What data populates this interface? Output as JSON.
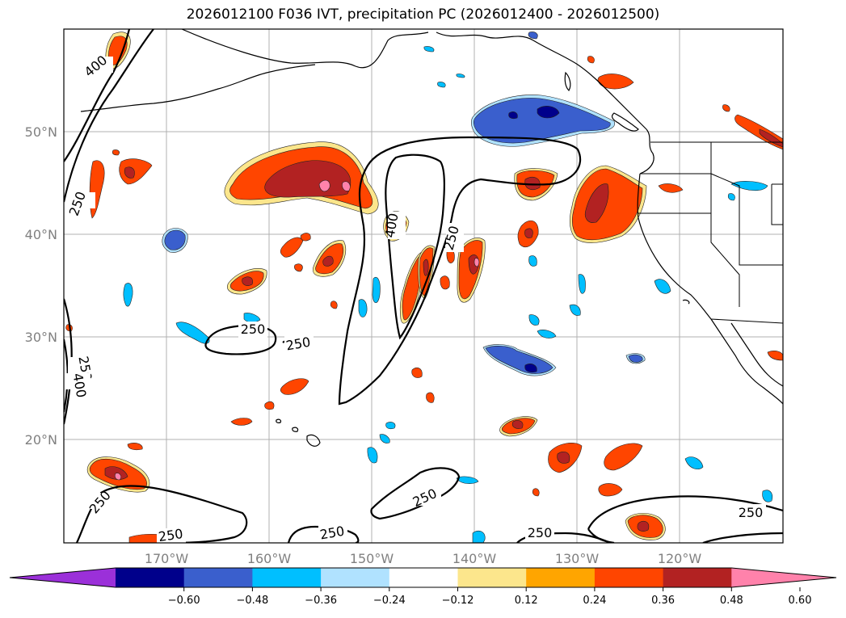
{
  "title": "2026012100 F036 IVT, precipitation PC (2026012400 - 2026012500)",
  "map": {
    "lat_labels": [
      "50°N",
      "40°N",
      "30°N",
      "20°N"
    ],
    "lon_labels": [
      "170°W",
      "160°W",
      "150°W",
      "140°W",
      "130°W",
      "120°W"
    ],
    "contour_labels": [
      "400",
      "250",
      "250",
      "400",
      "250",
      "250",
      "250",
      "400",
      "250",
      "250",
      "250",
      "250",
      "250",
      "250"
    ]
  },
  "colorbar": {
    "ticks": [
      "−0.60",
      "−0.48",
      "−0.36",
      "−0.24",
      "−0.12",
      "0.12",
      "0.24",
      "0.36",
      "0.48",
      "0.60"
    ],
    "colors": [
      "#9b30d9",
      "#00008b",
      "#3a5fcd",
      "#00bfff",
      "#b0e2ff",
      "#ffffff",
      "#fce68c",
      "#ffa500",
      "#ff4500",
      "#b22222",
      "#ff82ab"
    ]
  },
  "chart_data": {
    "type": "map",
    "title": "2026012100 F036 IVT, precipitation PC (2026012400 - 2026012500)",
    "lat_range": [
      10,
      60
    ],
    "lon_range": [
      -180,
      -110
    ],
    "ivt_contour_levels": [
      250,
      400
    ],
    "pc_color_levels": [
      -0.6,
      -0.48,
      -0.36,
      -0.24,
      -0.12,
      0.12,
      0.24,
      0.36,
      0.48,
      0.6
    ]
  }
}
